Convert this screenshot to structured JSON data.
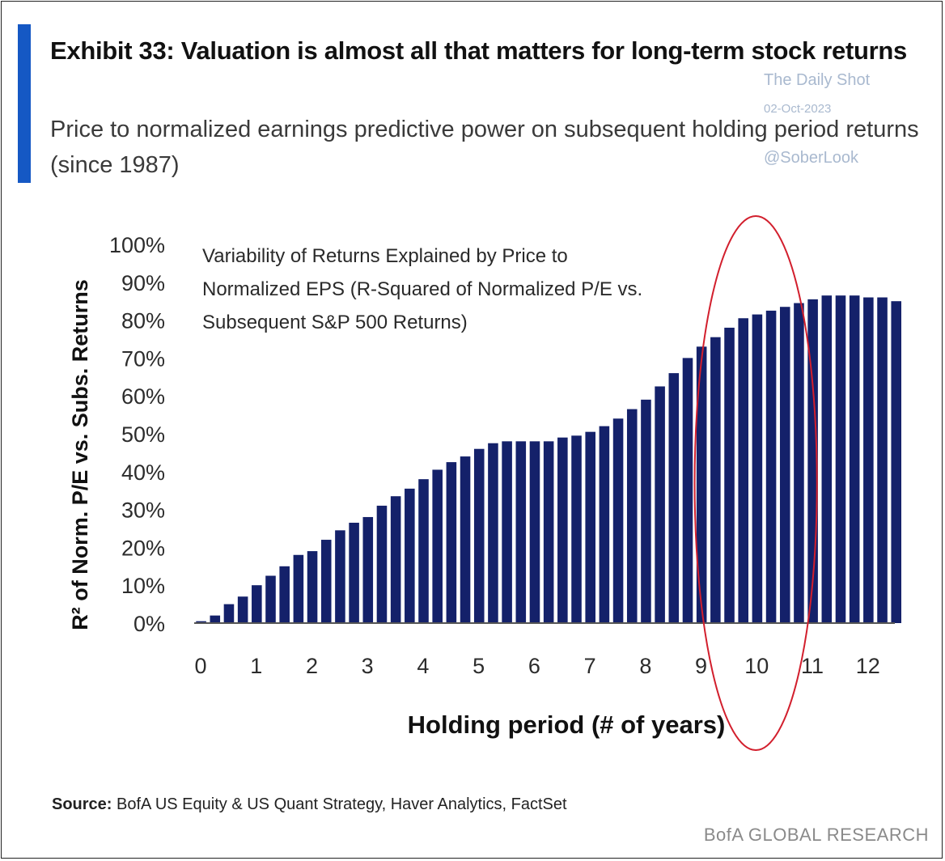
{
  "header": {
    "title": "Exhibit 33: Valuation is almost all that matters for long-term stock returns",
    "subtitle": "Price to normalized earnings predictive power on subsequent holding period returns (since 1987)"
  },
  "watermark": {
    "line1": "The Daily Shot",
    "line2": "02-Oct-2023",
    "line3": "@SoberLook"
  },
  "footer": {
    "source_label": "Source:",
    "source_text": "BofA US Equity & US Quant Strategy, Haver Analytics, FactSet",
    "brand": "BofA GLOBAL RESEARCH"
  },
  "colors": {
    "bar": "#14216a",
    "accent": "#1558c4",
    "highlight_ellipse": "#d21f2d"
  },
  "chart_data": {
    "type": "bar",
    "annotation": {
      "lines": [
        "Variability of Returns Explained by Price to",
        "Normalized EPS (R-Squared of Normalized P/E vs.",
        "Subsequent S&P 500 Returns)"
      ]
    },
    "xlabel": "Holding period (# of years)",
    "ylabel": "R² of Norm. P/E vs. Subs. Returns",
    "xticks": [
      "0",
      "1",
      "2",
      "3",
      "4",
      "5",
      "6",
      "7",
      "8",
      "9",
      "10",
      "11",
      "12"
    ],
    "yticks": [
      "0%",
      "10%",
      "20%",
      "30%",
      "40%",
      "50%",
      "60%",
      "70%",
      "80%",
      "90%",
      "100%"
    ],
    "ylim": [
      0,
      100
    ],
    "xlim": [
      0,
      12.6
    ],
    "bar_step_years": 0.25,
    "x": [
      0.0,
      0.25,
      0.5,
      0.75,
      1.0,
      1.25,
      1.5,
      1.75,
      2.0,
      2.25,
      2.5,
      2.75,
      3.0,
      3.25,
      3.5,
      3.75,
      4.0,
      4.25,
      4.5,
      4.75,
      5.0,
      5.25,
      5.5,
      5.75,
      6.0,
      6.25,
      6.5,
      6.75,
      7.0,
      7.25,
      7.5,
      7.75,
      8.0,
      8.25,
      8.5,
      8.75,
      9.0,
      9.25,
      9.5,
      9.75,
      10.0,
      10.25,
      10.5,
      10.75,
      11.0,
      11.25,
      11.5,
      11.75,
      12.0,
      12.25,
      12.5
    ],
    "values": [
      0.5,
      2,
      5,
      7,
      10,
      12.5,
      15,
      18,
      19,
      22,
      24.5,
      26.5,
      28,
      31,
      33.5,
      35.5,
      38,
      40.5,
      42.5,
      44,
      46,
      47.5,
      48,
      48,
      48,
      48,
      49,
      49.5,
      50.5,
      52,
      54,
      56.5,
      59,
      62.5,
      66,
      70,
      73,
      75.5,
      78,
      80.5,
      81.5,
      82.5,
      83.5,
      84.5,
      85.5,
      86.5,
      86.5,
      86.5,
      86,
      86,
      85
    ],
    "highlight": {
      "shape": "ellipse",
      "x_range_years": [
        9.0,
        11.2
      ]
    },
    "grid": false,
    "legend": "none"
  }
}
